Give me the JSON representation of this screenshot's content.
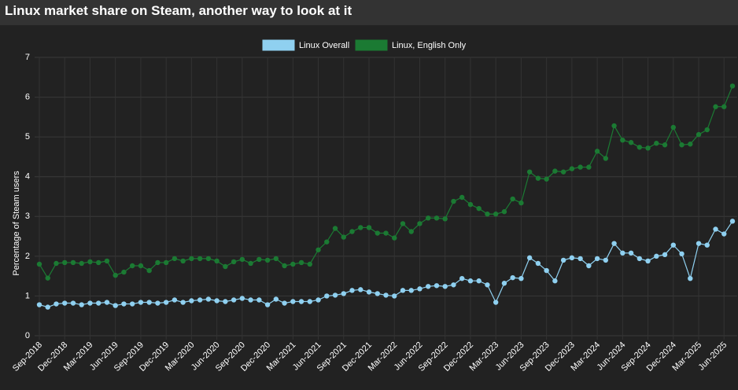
{
  "header": {
    "title": "Linux market share on Steam, another way to look at it"
  },
  "chart_data": {
    "type": "line",
    "ylabel": "Percentage of Steam users",
    "categories": [
      "Sep-2018",
      null,
      null,
      "Dec-2018",
      null,
      null,
      "Mar-2019",
      null,
      null,
      "Jun-2019",
      null,
      null,
      "Sep-2019",
      null,
      null,
      "Dec-2019",
      null,
      null,
      "Mar-2020",
      null,
      null,
      "Jun-2020",
      null,
      null,
      "Sep-2020",
      null,
      null,
      "Dec-2020",
      null,
      null,
      "Mar-2021",
      null,
      null,
      "Jun-2021",
      null,
      null,
      "Sep-2021",
      null,
      null,
      "Dec-2021",
      null,
      null,
      "Mar-2022",
      null,
      null,
      "Jun-2022",
      null,
      null,
      "Sep-2022",
      null,
      null,
      "Dec-2022",
      null,
      null,
      "Mar-2023",
      null,
      null,
      "Jun-2023",
      null,
      null,
      "Sep-2023",
      null,
      null,
      "Dec-2023",
      null,
      null,
      "Mar-2024",
      null,
      null,
      "Jun-2024",
      null,
      null,
      "Sep-2024",
      null,
      null,
      "Dec-2024",
      null,
      null,
      "Mar-2025",
      null,
      null,
      "Jun-2025",
      null
    ],
    "series": [
      {
        "name": "Linux Overall",
        "color": "#8fd0f0",
        "values": [
          0.78,
          0.72,
          0.8,
          0.82,
          0.82,
          0.78,
          0.82,
          0.82,
          0.84,
          0.76,
          0.8,
          0.8,
          0.84,
          0.84,
          0.82,
          0.84,
          0.9,
          0.84,
          0.88,
          0.9,
          0.92,
          0.88,
          0.86,
          0.9,
          0.94,
          0.9,
          0.9,
          0.78,
          0.92,
          0.82,
          0.86,
          0.86,
          0.86,
          0.9,
          1.0,
          1.02,
          1.06,
          1.14,
          1.16,
          1.1,
          1.06,
          1.02,
          1.0,
          1.14,
          1.14,
          1.18,
          1.24,
          1.26,
          1.24,
          1.28,
          1.44,
          1.38,
          1.38,
          1.28,
          0.84,
          1.32,
          1.46,
          1.44,
          1.96,
          1.82,
          1.64,
          1.38,
          1.9,
          1.96,
          1.94,
          1.76,
          1.94,
          1.9,
          2.32,
          2.08,
          2.08,
          1.94,
          1.88,
          2.0,
          2.04,
          2.28,
          2.06,
          1.44,
          2.32,
          2.28,
          2.68,
          2.56,
          2.88
        ]
      },
      {
        "name": "Linux, English Only",
        "color": "#1b7a33",
        "values": [
          1.8,
          1.45,
          1.82,
          1.84,
          1.84,
          1.82,
          1.86,
          1.84,
          1.88,
          1.52,
          1.6,
          1.76,
          1.76,
          1.64,
          1.84,
          1.84,
          1.94,
          1.88,
          1.94,
          1.94,
          1.94,
          1.88,
          1.74,
          1.86,
          1.92,
          1.82,
          1.92,
          1.9,
          1.94,
          1.76,
          1.8,
          1.84,
          1.8,
          2.16,
          2.36,
          2.7,
          2.48,
          2.62,
          2.72,
          2.72,
          2.58,
          2.58,
          2.46,
          2.82,
          2.62,
          2.82,
          2.96,
          2.96,
          2.94,
          3.38,
          3.48,
          3.3,
          3.2,
          3.06,
          3.06,
          3.12,
          3.44,
          3.34,
          4.12,
          3.96,
          3.94,
          4.14,
          4.12,
          4.2,
          4.24,
          4.24,
          4.64,
          4.46,
          5.28,
          4.92,
          4.86,
          4.74,
          4.72,
          4.84,
          4.8,
          5.24,
          4.8,
          4.82,
          5.06,
          5.18,
          5.76,
          5.76,
          6.28
        ]
      }
    ],
    "ylim": [
      0,
      7
    ],
    "yticks": [
      0,
      1,
      2,
      3,
      4,
      5,
      6,
      7
    ],
    "grid": true
  }
}
